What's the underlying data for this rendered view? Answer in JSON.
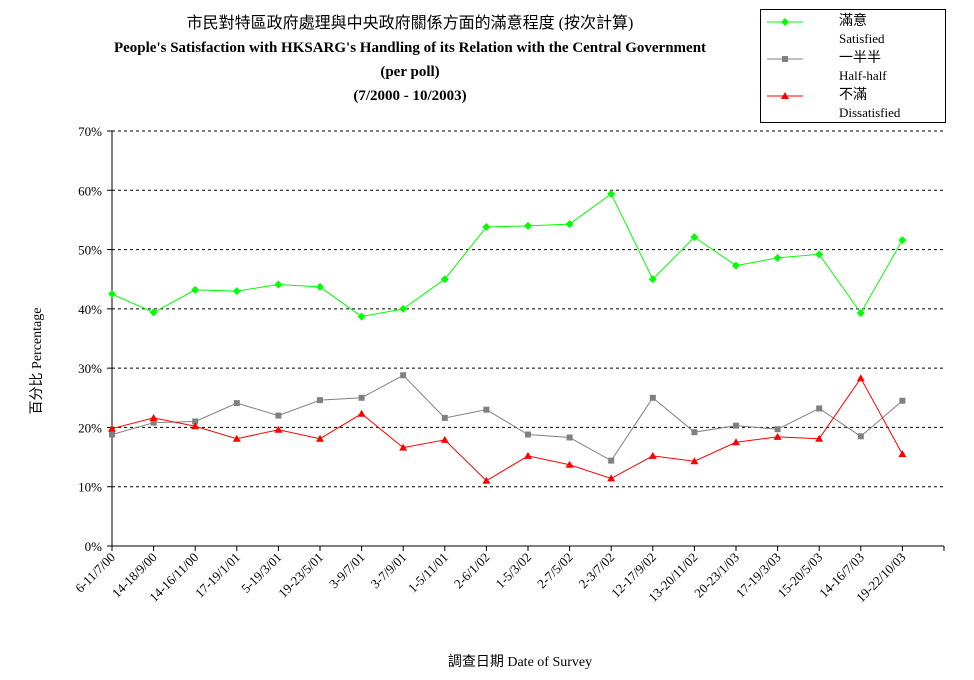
{
  "title": {
    "zh": "市民對特區政府處理與中央政府關係方面的滿意程度 (按次計算)",
    "en": "People's Satisfaction with HKSARG's Handling of its Relation with the Central Government",
    "sub": "(per poll)",
    "range": "(7/2000 - 10/2003)"
  },
  "axes": {
    "y_title": "百分比 Percentage",
    "x_title": "調查日期 Date of Survey"
  },
  "legend": [
    {
      "zh": "滿意",
      "en": "Satisfied",
      "color": "#00ff00",
      "marker": "diamond"
    },
    {
      "zh": "一半半",
      "en": "Half-half",
      "color": "#808080",
      "marker": "square"
    },
    {
      "zh": "不滿",
      "en": "Dissatisfied",
      "color": "#ff0000",
      "marker": "triangle"
    }
  ],
  "chart_data": {
    "type": "line",
    "categories": [
      "6-11/7/00",
      "14-18/9/00",
      "14-16/11/00",
      "17-19/1/01",
      "5-19/3/01",
      "19-23/5/01",
      "3-9/7/01",
      "3-7/9/01",
      "1-5/11/01",
      "2-6/1/02",
      "1-5/3/02",
      "2-7/5/02",
      "2-3/7/02",
      "12-17/9/02",
      "13-20/11/02",
      "20-23/1/03",
      "17-19/3/03",
      "15-20/5/03",
      "14-16/7/03",
      "19-22/10/03"
    ],
    "series": [
      {
        "name": "滿意 Satisfied",
        "color": "#00ff00",
        "marker": "diamond",
        "values": [
          42.5,
          39.4,
          43.2,
          43.0,
          44.1,
          43.7,
          38.7,
          40.0,
          45.0,
          53.8,
          54.0,
          54.3,
          59.4,
          45.0,
          52.1,
          47.3,
          48.6,
          49.2,
          39.3,
          51.6
        ]
      },
      {
        "name": "一半半 Half-half",
        "color": "#808080",
        "marker": "square",
        "values": [
          18.8,
          20.8,
          21.0,
          24.1,
          22.0,
          24.6,
          25.0,
          28.8,
          21.6,
          23.0,
          18.8,
          18.3,
          14.4,
          25.0,
          19.2,
          20.3,
          19.7,
          23.2,
          18.5,
          24.5
        ]
      },
      {
        "name": "不滿 Dissatisfied",
        "color": "#ff0000",
        "marker": "triangle",
        "values": [
          19.8,
          21.6,
          20.2,
          18.1,
          19.6,
          18.1,
          22.3,
          16.6,
          17.9,
          11.0,
          15.2,
          13.7,
          11.4,
          15.2,
          14.3,
          17.5,
          18.4,
          18.1,
          28.3,
          15.5
        ]
      }
    ],
    "yticks": [
      "0%",
      "10%",
      "20%",
      "30%",
      "40%",
      "50%",
      "60%",
      "70%"
    ],
    "ylim": [
      0,
      70
    ],
    "grid": "horizontal dashed",
    "legend_position": "top-right",
    "xlabel": "調查日期 Date of Survey",
    "ylabel": "百分比 Percentage"
  }
}
